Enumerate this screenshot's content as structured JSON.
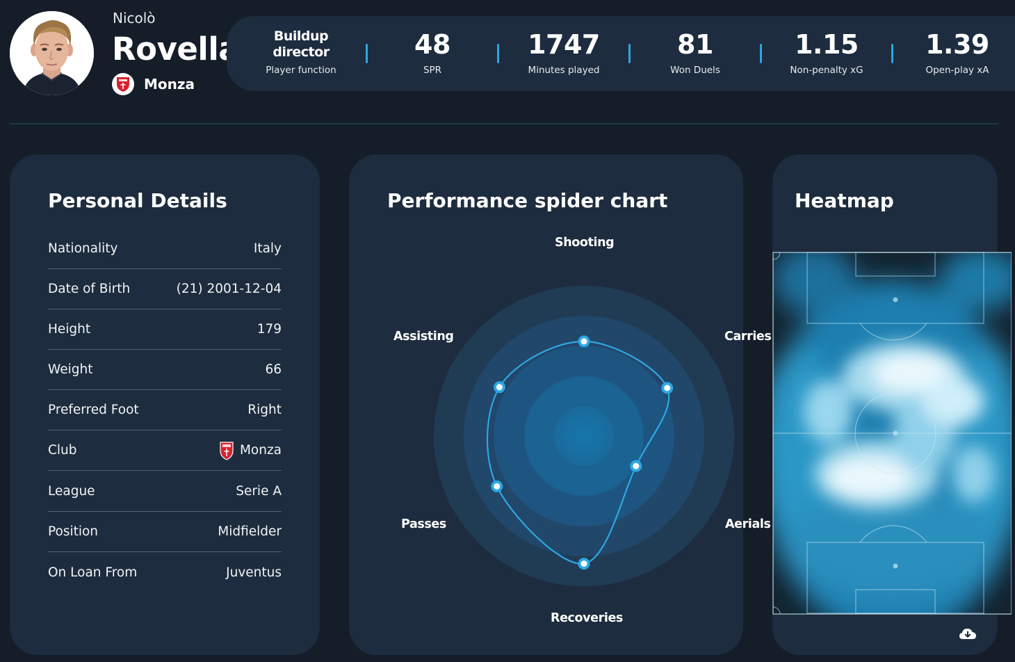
{
  "player": {
    "first_name": "Nicolò",
    "last_name": "Rovella",
    "club": "Monza",
    "avatar_icon": "player-portrait",
    "club_icon": "monza-crest-icon"
  },
  "stats": [
    {
      "value": "Buildup director",
      "value_line1": "Buildup",
      "value_line2": "director",
      "label": "Player function"
    },
    {
      "value": "48",
      "label": "SPR"
    },
    {
      "value": "1747",
      "label": "Minutes played"
    },
    {
      "value": "81",
      "label": "Won Duels"
    },
    {
      "value": "1.15",
      "label": "Non-penalty xG"
    },
    {
      "value": "1.39",
      "label": "Open-play xA"
    }
  ],
  "personal_details": {
    "title": "Personal Details",
    "rows": [
      {
        "label": "Nationality",
        "value": "Italy"
      },
      {
        "label": "Date of Birth",
        "value": "(21) 2001-12-04"
      },
      {
        "label": "Height",
        "value": "179"
      },
      {
        "label": "Weight",
        "value": "66"
      },
      {
        "label": "Preferred Foot",
        "value": "Right"
      },
      {
        "label": "Club",
        "value": "Monza"
      },
      {
        "label": "League",
        "value": "Serie A"
      },
      {
        "label": "Position",
        "value": "Midfielder"
      },
      {
        "label": "On Loan From",
        "value": "Juventus"
      }
    ]
  },
  "spider": {
    "title": "Performance spider chart",
    "labels": {
      "shooting": "Shooting",
      "carries": "Carries",
      "aerials": "Aerials",
      "recoveries": "Recoveries",
      "passes": "Passes",
      "assisting": "Assisting"
    }
  },
  "heatmap": {
    "title": "Heatmap",
    "download_icon": "cloud-download-icon"
  },
  "colors": {
    "background": "#151d29",
    "card": "#1d2c3e",
    "accent": "#2fa6df",
    "crest_red": "#d8232f"
  },
  "chart_data": {
    "type": "radar",
    "axes": [
      "Shooting",
      "Carries",
      "Aerials",
      "Recoveries",
      "Passes",
      "Assisting"
    ],
    "values": [
      0.63,
      0.64,
      0.4,
      0.85,
      0.67,
      0.65
    ],
    "range": [
      0,
      1
    ]
  }
}
